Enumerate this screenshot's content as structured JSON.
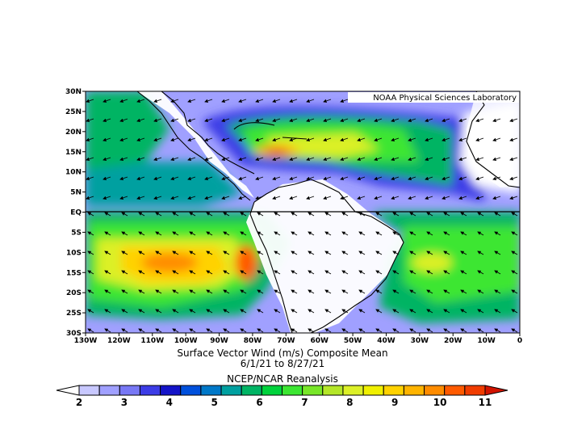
{
  "credit": "NOAA Physical Sciences Laboratory",
  "caption": {
    "line1": "Surface Vector Wind (m/s) Composite Mean",
    "line2": "6/1/21  to 8/27/21",
    "line3": "NCEP/NCAR Reanalysis"
  },
  "lat_ticks": [
    "30N",
    "25N",
    "20N",
    "15N",
    "10N",
    "5N",
    "EQ",
    "5S",
    "10S",
    "15S",
    "20S",
    "25S",
    "30S"
  ],
  "lon_ticks": [
    "130W",
    "120W",
    "110W",
    "100W",
    "90W",
    "80W",
    "70W",
    "60W",
    "50W",
    "40W",
    "30W",
    "20W",
    "10W",
    "0"
  ],
  "colorbar": {
    "labels": [
      "2",
      "3",
      "4",
      "5",
      "6",
      "7",
      "8",
      "9",
      "10",
      "11"
    ],
    "colors": [
      "#ffffff",
      "#c8c8ff",
      "#a0a0ff",
      "#7878f5",
      "#3c3ce6",
      "#1414c8",
      "#0050dc",
      "#0078c8",
      "#00a0a0",
      "#00b464",
      "#00d23c",
      "#3ce632",
      "#78e628",
      "#b4e628",
      "#dcf028",
      "#f0f000",
      "#ffd200",
      "#ffb400",
      "#ff8c00",
      "#ff5a00",
      "#f03c00",
      "#d21400"
    ]
  }
}
